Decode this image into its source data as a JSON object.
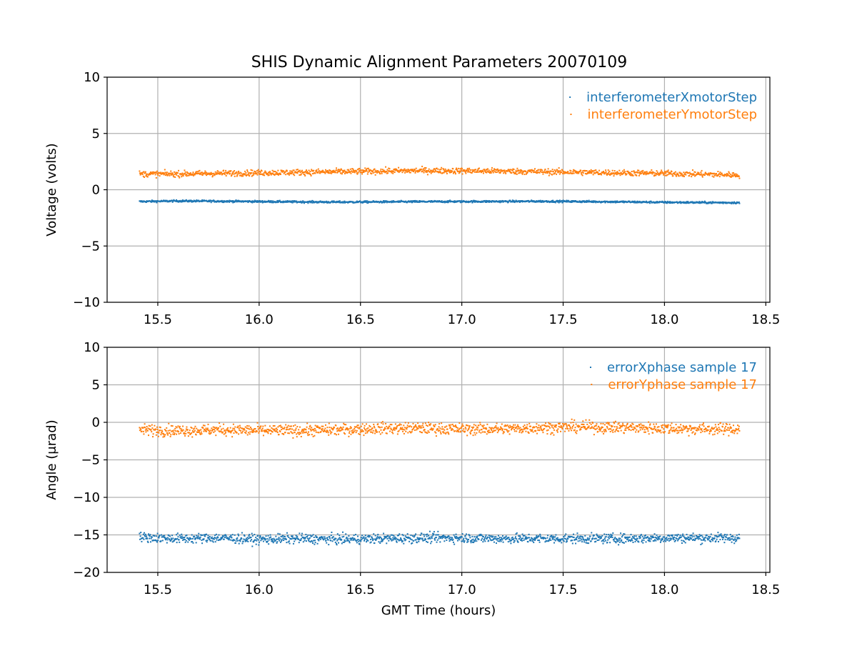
{
  "figure": {
    "title": "SHIS Dynamic Alignment Parameters 20070109"
  },
  "colors": {
    "series1": "#1f77b4",
    "series2": "#ff7f0e",
    "grid": "#b0b0b0",
    "axes": "#000000",
    "background": "#ffffff"
  },
  "chart_data": [
    {
      "type": "scatter",
      "title": "SHIS Dynamic Alignment Parameters 20070109",
      "xlabel": "",
      "ylabel": "Voltage (volts)",
      "xlim": [
        15.25,
        18.52
      ],
      "ylim": [
        -10,
        10
      ],
      "xticks": [
        15.5,
        16.0,
        16.5,
        17.0,
        17.5,
        18.0,
        18.5
      ],
      "xtick_labels": [
        "15.5",
        "16.0",
        "16.5",
        "17.0",
        "17.5",
        "18.0",
        "18.5"
      ],
      "yticks": [
        -10,
        -5,
        0,
        5,
        10
      ],
      "ytick_labels": [
        "−10",
        "−5",
        "0",
        "5",
        "10"
      ],
      "grid": true,
      "legend_position": "top-right",
      "series": [
        {
          "name": "interferometerXmotorStep",
          "color": "#1f77b4",
          "x": [
            15.41,
            15.6,
            15.8,
            16.0,
            16.2,
            16.4,
            16.6,
            16.8,
            17.0,
            17.2,
            17.4,
            17.6,
            17.8,
            18.0,
            18.2,
            18.37
          ],
          "y": [
            -1.05,
            -1.0,
            -1.02,
            -1.05,
            -1.08,
            -1.1,
            -1.08,
            -1.06,
            -1.05,
            -1.04,
            -1.03,
            -1.05,
            -1.08,
            -1.12,
            -1.14,
            -1.15
          ],
          "band": 0.15
        },
        {
          "name": "interferometerYmotorStep",
          "color": "#ff7f0e",
          "x": [
            15.41,
            15.6,
            15.8,
            16.0,
            16.2,
            16.4,
            16.6,
            16.8,
            17.0,
            17.2,
            17.4,
            17.6,
            17.8,
            18.0,
            18.2,
            18.37
          ],
          "y": [
            1.4,
            1.4,
            1.45,
            1.5,
            1.55,
            1.6,
            1.65,
            1.7,
            1.68,
            1.65,
            1.6,
            1.55,
            1.5,
            1.45,
            1.38,
            1.3
          ],
          "band": 0.45
        }
      ]
    },
    {
      "type": "scatter",
      "title": "",
      "xlabel": "GMT Time (hours)",
      "ylabel": "Angle (μrad)",
      "xlim": [
        15.25,
        18.52
      ],
      "ylim": [
        -20,
        10
      ],
      "xticks": [
        15.5,
        16.0,
        16.5,
        17.0,
        17.5,
        18.0,
        18.5
      ],
      "xtick_labels": [
        "15.5",
        "16.0",
        "16.5",
        "17.0",
        "17.5",
        "18.0",
        "18.5"
      ],
      "yticks": [
        -20,
        -15,
        -10,
        -5,
        0,
        5,
        10
      ],
      "ytick_labels": [
        "−20",
        "−15",
        "−10",
        "−5",
        "0",
        "5",
        "10"
      ],
      "grid": true,
      "legend_position": "top-right",
      "series": [
        {
          "name": "errorXphase sample 17",
          "color": "#1f77b4",
          "x": [
            15.41,
            15.6,
            15.8,
            16.0,
            16.2,
            16.4,
            16.6,
            16.8,
            17.0,
            17.2,
            17.4,
            17.6,
            17.8,
            18.0,
            18.2,
            18.37
          ],
          "y": [
            -15.3,
            -15.5,
            -15.4,
            -15.6,
            -15.5,
            -15.6,
            -15.5,
            -15.4,
            -15.4,
            -15.5,
            -15.5,
            -15.5,
            -15.5,
            -15.4,
            -15.4,
            -15.4
          ],
          "band": 1.1
        },
        {
          "name": "errorYphase sample 17",
          "color": "#ff7f0e",
          "x": [
            15.41,
            15.6,
            15.8,
            16.0,
            16.2,
            16.4,
            16.6,
            16.8,
            17.0,
            17.2,
            17.4,
            17.6,
            17.8,
            18.0,
            18.2,
            18.37
          ],
          "y": [
            -1.0,
            -1.1,
            -1.0,
            -1.1,
            -1.1,
            -1.0,
            -0.8,
            -0.8,
            -0.9,
            -0.9,
            -0.7,
            -0.6,
            -0.7,
            -0.8,
            -0.9,
            -0.9
          ],
          "band": 1.3
        }
      ]
    }
  ]
}
